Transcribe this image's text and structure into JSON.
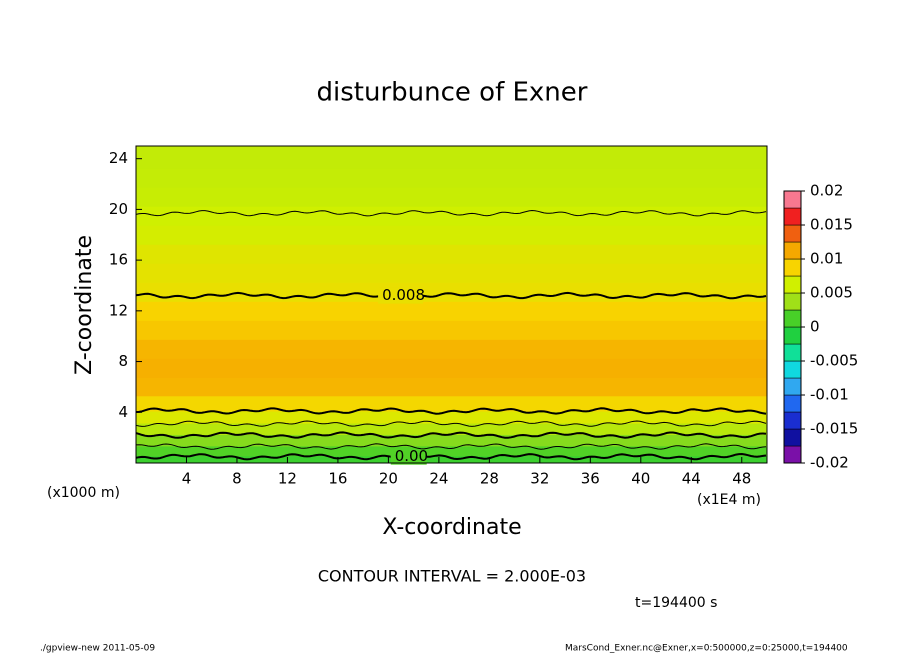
{
  "chart_data": {
    "type": "contour",
    "title": "disturbunce of Exner",
    "x_label": "X-coordinate",
    "y_label": "Z-coordinate",
    "x_unit_left": "(x1000 m)",
    "x_unit_right": "(x1E4 m)",
    "xlim": [
      0,
      50
    ],
    "xticks": [
      4,
      8,
      12,
      16,
      20,
      24,
      28,
      32,
      36,
      40,
      44,
      48
    ],
    "ylim": [
      0,
      25
    ],
    "yticks": [
      4,
      8,
      12,
      16,
      20,
      24
    ],
    "z": [
      0.25,
      0.9,
      1.8,
      2.7,
      3.6,
      4.6,
      6,
      7.5,
      9,
      10.5,
      12,
      13.5,
      15,
      16.5,
      18,
      19.5,
      21,
      22.5,
      24
    ],
    "values": [
      0.0005,
      0.0015,
      0.003,
      0.005,
      0.007,
      0.0085,
      0.0105,
      0.0108,
      0.0105,
      0.0095,
      0.0088,
      0.0078,
      0.0075,
      0.0072,
      0.0065,
      0.0062,
      0.0058,
      0.0056,
      0.0055
    ],
    "contours": [
      {
        "z": 0.5,
        "bold": true,
        "label": "0.00",
        "label_x": 20.5
      },
      {
        "z": 1.3,
        "bold": false
      },
      {
        "z": 2.2,
        "bold": true
      },
      {
        "z": 3.1,
        "bold": false
      },
      {
        "z": 4.1,
        "bold": true
      },
      {
        "z": 13.2,
        "bold": true,
        "label": "0.008",
        "label_x": 19.5
      },
      {
        "z": 19.7,
        "bold": false
      }
    ],
    "colorbar": {
      "levels": [
        -0.02,
        -0.0175,
        -0.015,
        -0.0125,
        -0.01,
        -0.0075,
        -0.005,
        -0.0025,
        0,
        0.0025,
        0.005,
        0.0075,
        0.01,
        0.0125,
        0.015,
        0.0175,
        0.02
      ],
      "colors": [
        "#7a10a8",
        "#1010a0",
        "#1a2ed0",
        "#2068f0",
        "#30a8f0",
        "#10d8e0",
        "#10e098",
        "#20d040",
        "#48d028",
        "#a0e018",
        "#d0f000",
        "#f8d400",
        "#f5a800",
        "#f06010",
        "#f02020",
        "#f87890"
      ],
      "ticks": [
        -0.02,
        -0.015,
        -0.01,
        -0.005,
        0,
        0.005,
        0.01,
        0.015,
        0.02
      ]
    },
    "contour_interval": "CONTOUR INTERVAL = 2.000E-03",
    "time": "t=194400 s",
    "footer_left": "./gpview-new  2011-05-09",
    "footer_right": "MarsCond_Exner.nc@Exner,x=0:500000,z=0:25000,t=194400"
  }
}
